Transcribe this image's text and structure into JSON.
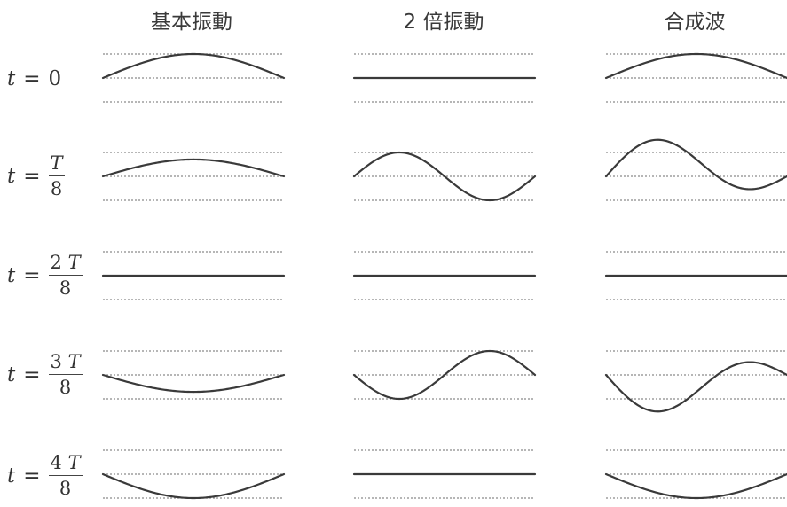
{
  "columns": [
    {
      "key": "fundamental",
      "label": "基本振動"
    },
    {
      "key": "second",
      "label": "2 倍振動"
    },
    {
      "key": "sum",
      "label": "合成波"
    }
  ],
  "rows": [
    {
      "prefix": "t",
      "equals": "=",
      "value": "0",
      "fraction": null
    },
    {
      "prefix": "t",
      "equals": "=",
      "value": "",
      "fraction": {
        "coef": "",
        "var": "T",
        "den": "8"
      }
    },
    {
      "prefix": "t",
      "equals": "=",
      "value": "",
      "fraction": {
        "coef": "2",
        "var": "T",
        "den": "8"
      }
    },
    {
      "prefix": "t",
      "equals": "=",
      "value": "",
      "fraction": {
        "coef": "3",
        "var": "T",
        "den": "8"
      }
    },
    {
      "prefix": "t",
      "equals": "=",
      "value": "",
      "fraction": {
        "coef": "4",
        "var": "T",
        "den": "8"
      }
    }
  ],
  "waves": {
    "fundamental_amplitudes": [
      1,
      0.707,
      0,
      -0.707,
      -1
    ],
    "second_amplitudes": [
      0,
      1,
      0,
      -1,
      0
    ],
    "line_color": "#3a3a3a",
    "guide_color": "#8a8a8a"
  }
}
